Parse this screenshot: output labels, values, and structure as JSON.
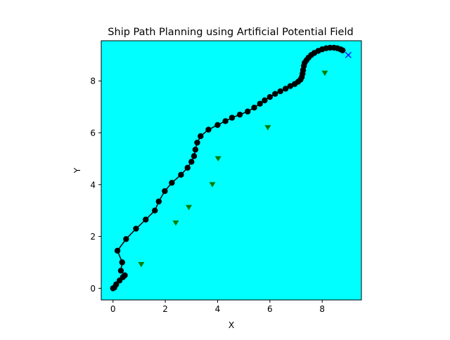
{
  "chart_data": {
    "type": "scatter",
    "title": "Ship Path Planning using Artificial Potential Field",
    "xlabel": "X",
    "ylabel": "Y",
    "xlim": [
      -0.45,
      9.5
    ],
    "ylim": [
      -0.45,
      9.55
    ],
    "xticks": [
      0,
      2,
      4,
      6,
      8
    ],
    "yticks": [
      0,
      2,
      4,
      6,
      8
    ],
    "grid": false,
    "background_color": "#00ffff",
    "series": [
      {
        "role": "path",
        "style": "black line with filled circle markers",
        "color": "#000000",
        "points": [
          [
            0.0,
            0.0
          ],
          [
            0.05,
            0.03
          ],
          [
            0.12,
            0.15
          ],
          [
            0.25,
            0.3
          ],
          [
            0.38,
            0.43
          ],
          [
            0.45,
            0.5
          ],
          [
            0.3,
            0.68
          ],
          [
            0.35,
            1.0
          ],
          [
            0.17,
            1.45
          ],
          [
            0.5,
            1.9
          ],
          [
            0.88,
            2.3
          ],
          [
            1.25,
            2.65
          ],
          [
            1.6,
            3.0
          ],
          [
            1.75,
            3.35
          ],
          [
            1.98,
            3.75
          ],
          [
            2.25,
            4.07
          ],
          [
            2.6,
            4.38
          ],
          [
            2.85,
            4.65
          ],
          [
            3.0,
            4.88
          ],
          [
            3.1,
            5.1
          ],
          [
            3.15,
            5.35
          ],
          [
            3.22,
            5.62
          ],
          [
            3.35,
            5.87
          ],
          [
            3.65,
            6.12
          ],
          [
            4.0,
            6.3
          ],
          [
            4.3,
            6.45
          ],
          [
            4.55,
            6.58
          ],
          [
            4.85,
            6.7
          ],
          [
            5.15,
            6.82
          ],
          [
            5.4,
            6.97
          ],
          [
            5.62,
            7.12
          ],
          [
            5.8,
            7.25
          ],
          [
            6.0,
            7.38
          ],
          [
            6.2,
            7.5
          ],
          [
            6.4,
            7.6
          ],
          [
            6.6,
            7.7
          ],
          [
            6.78,
            7.8
          ],
          [
            6.95,
            7.88
          ],
          [
            7.08,
            7.97
          ],
          [
            7.17,
            8.05
          ],
          [
            7.22,
            8.15
          ],
          [
            7.25,
            8.28
          ],
          [
            7.27,
            8.42
          ],
          [
            7.3,
            8.58
          ],
          [
            7.33,
            8.7
          ],
          [
            7.4,
            8.8
          ],
          [
            7.48,
            8.9
          ],
          [
            7.58,
            9.0
          ],
          [
            7.7,
            9.08
          ],
          [
            7.85,
            9.16
          ],
          [
            8.0,
            9.22
          ],
          [
            8.15,
            9.26
          ],
          [
            8.3,
            9.28
          ],
          [
            8.45,
            9.28
          ],
          [
            8.58,
            9.26
          ],
          [
            8.7,
            9.22
          ],
          [
            8.78,
            9.18
          ]
        ]
      },
      {
        "role": "obstacles",
        "style": "green downward triangles",
        "color": "#008000",
        "points": [
          [
            1.08,
            0.92
          ],
          [
            2.4,
            2.52
          ],
          [
            2.9,
            3.12
          ],
          [
            3.8,
            4.0
          ],
          [
            4.02,
            5.0
          ],
          [
            5.92,
            6.2
          ],
          [
            8.1,
            8.3
          ]
        ]
      },
      {
        "role": "goal",
        "style": "blue x marker",
        "color": "#0000ff",
        "points": [
          [
            9.0,
            9.0
          ]
        ]
      }
    ]
  }
}
